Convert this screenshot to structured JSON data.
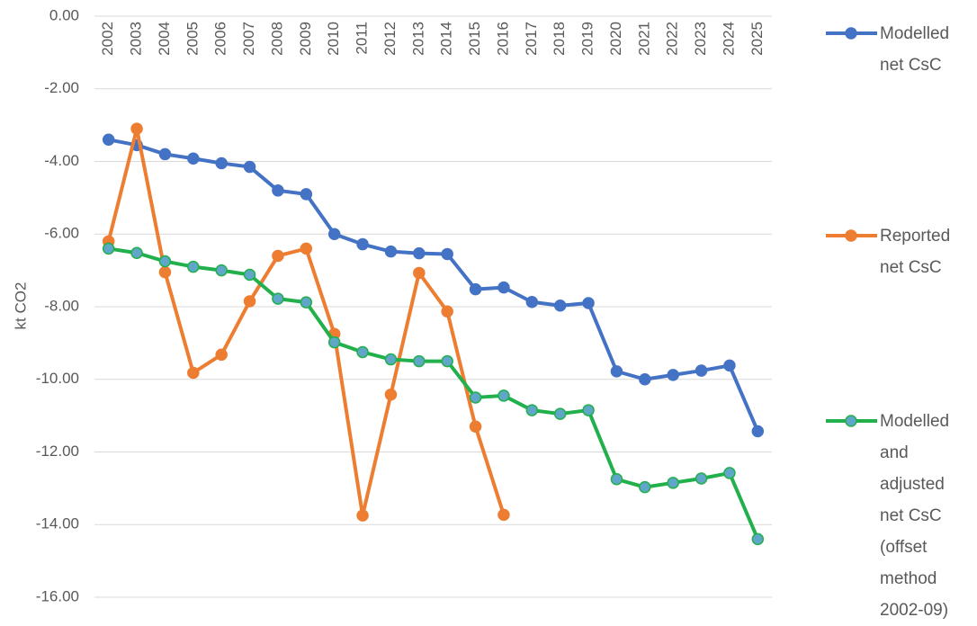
{
  "chart_data": {
    "type": "line",
    "y_label": "kt CO2",
    "categories": [
      "2002",
      "2003",
      "2004",
      "2005",
      "2006",
      "2007",
      "2008",
      "2009",
      "2010",
      "2011",
      "2012",
      "2013",
      "2014",
      "2015",
      "2016",
      "2017",
      "2018",
      "2019",
      "2020",
      "2021",
      "2022",
      "2023",
      "2024",
      "2025"
    ],
    "series": [
      {
        "name": "Modelled net CsC",
        "color": "#4472c4",
        "marker_fill": "#4472c4",
        "values": [
          -3.4,
          -3.55,
          -3.8,
          -3.92,
          -4.05,
          -4.15,
          -4.8,
          -4.9,
          -6.0,
          -6.28,
          -6.48,
          -6.53,
          -6.55,
          -7.52,
          -7.47,
          -7.87,
          -7.97,
          -7.9,
          -9.78,
          -10.0,
          -9.88,
          -9.76,
          -9.62,
          -11.43
        ]
      },
      {
        "name": "Reported net CsC",
        "color": "#ed7d31",
        "marker_fill": "#ed7d31",
        "values": [
          -6.2,
          -3.1,
          -7.05,
          -9.82,
          -9.32,
          -7.85,
          -6.6,
          -6.4,
          -8.75,
          -13.75,
          -10.42,
          -7.07,
          -8.13,
          -11.3,
          -13.73,
          null,
          null,
          null,
          null,
          null,
          null,
          null,
          null,
          null
        ]
      },
      {
        "name": "Modelled and adjusted net CsC (offset method 2002-09)",
        "color": "#21b04b",
        "marker_fill": "#5fa6c8",
        "values": [
          -6.4,
          -6.52,
          -6.75,
          -6.9,
          -7.0,
          -7.12,
          -7.78,
          -7.88,
          -8.98,
          -9.25,
          -9.45,
          -9.5,
          -9.5,
          -10.5,
          -10.45,
          -10.85,
          -10.95,
          -10.85,
          -12.75,
          -12.97,
          -12.85,
          -12.73,
          -12.58,
          -14.4
        ]
      }
    ],
    "ylim": [
      -16,
      0
    ],
    "yticks": [
      {
        "value": 0,
        "label": "0.00"
      },
      {
        "value": -2,
        "label": "-2.00"
      },
      {
        "value": -4,
        "label": "-4.00"
      },
      {
        "value": -6,
        "label": "-6.00"
      },
      {
        "value": -8,
        "label": "-8.00"
      },
      {
        "value": -10,
        "label": "-10.00"
      },
      {
        "value": -12,
        "label": "-12.00"
      },
      {
        "value": -14,
        "label": "-14.00"
      },
      {
        "value": -16,
        "label": "-16.00"
      }
    ],
    "grid": true,
    "legend": "right"
  }
}
